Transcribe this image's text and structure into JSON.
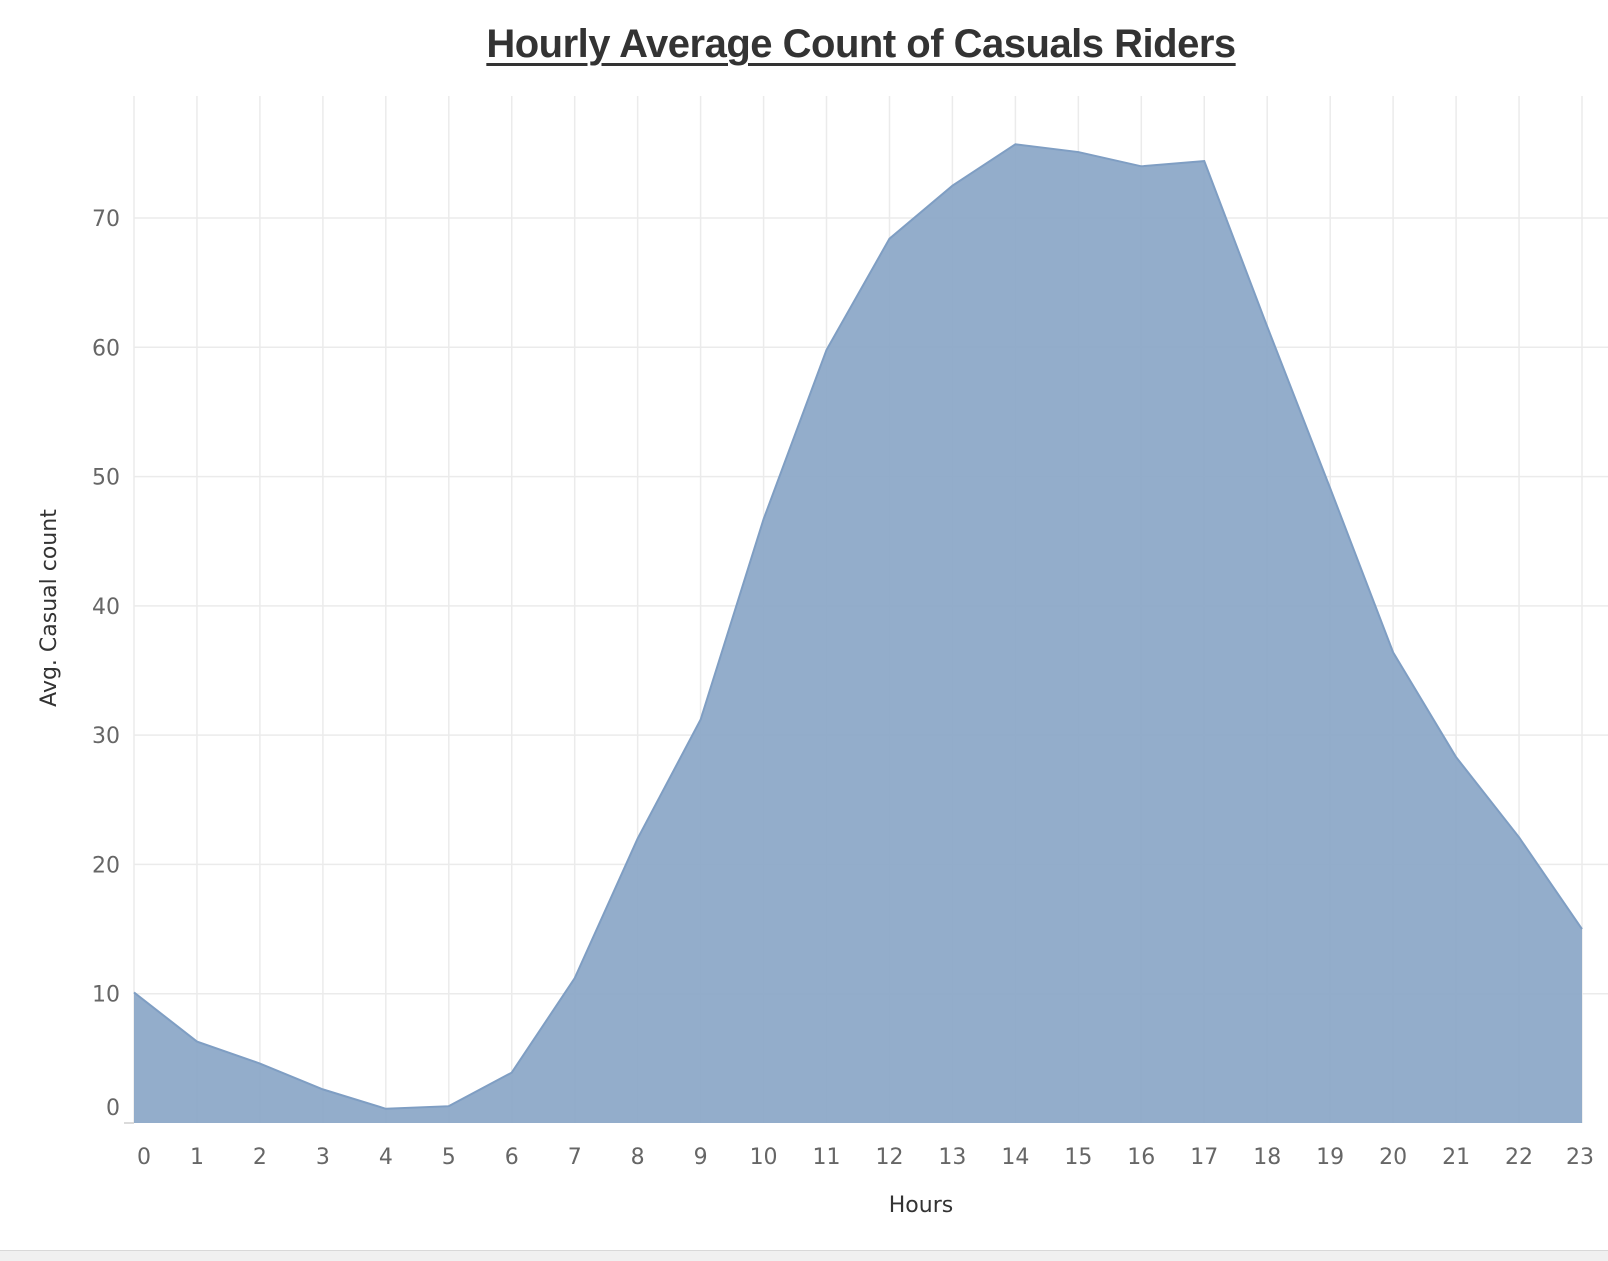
{
  "chart_data": {
    "type": "area",
    "title": "Hourly Average Count of Casuals Riders",
    "xlabel": "Hours",
    "ylabel": "Avg. Casual count",
    "x": [
      0,
      1,
      2,
      3,
      4,
      5,
      6,
      7,
      8,
      9,
      10,
      11,
      12,
      13,
      14,
      15,
      16,
      17,
      18,
      19,
      20,
      21,
      22,
      23
    ],
    "values": [
      10.1,
      6.3,
      4.6,
      2.6,
      1.1,
      1.3,
      3.9,
      11.2,
      22.0,
      31.2,
      46.7,
      59.8,
      68.4,
      72.5,
      75.7,
      75.1,
      74.0,
      74.4,
      61.6,
      49.1,
      36.4,
      28.3,
      22.1,
      15.0
    ],
    "ylim": [
      0,
      80
    ],
    "yticks": [
      0,
      10,
      20,
      30,
      40,
      50,
      60,
      70
    ],
    "grid": true,
    "colors": {
      "fill": "#8DA9C8",
      "stroke": "#7F9EC3",
      "grid": "#ebebeb"
    }
  }
}
